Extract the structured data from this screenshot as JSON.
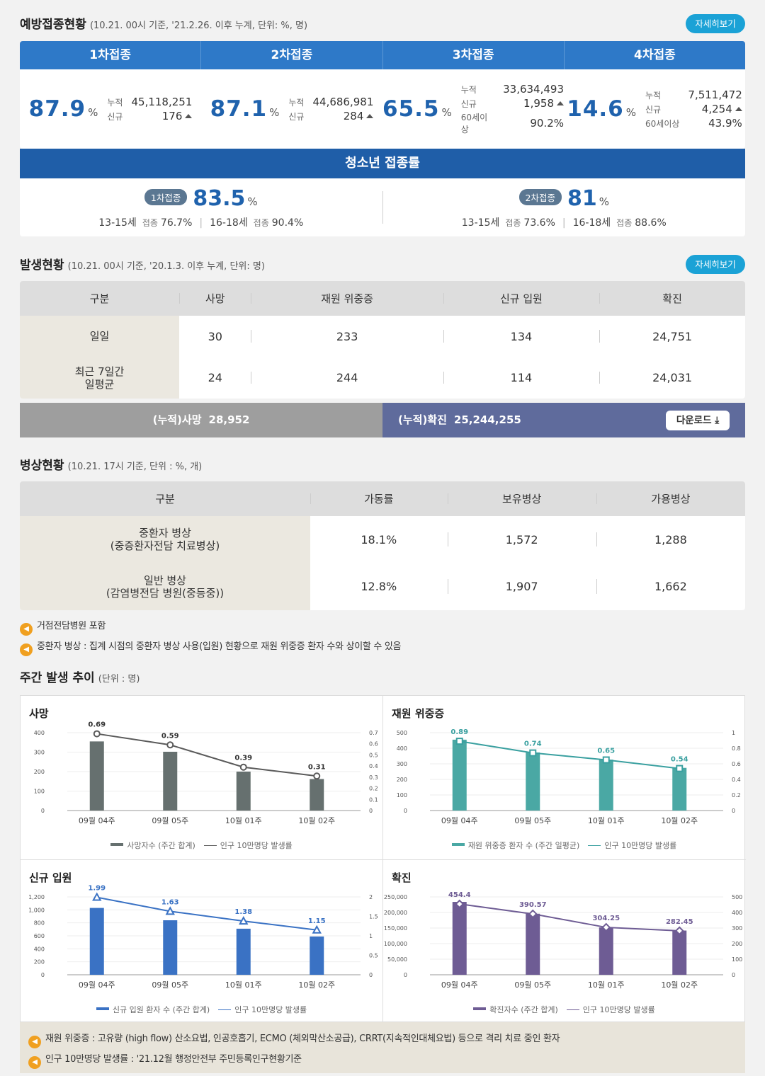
{
  "vaccination": {
    "title": "예방접종현황",
    "subtitle": "(10.21. 00시 기준, '21.2.26. 이후 누계, 단위: %, 명)",
    "more": "자세히보기",
    "doses": [
      {
        "label": "1차접종",
        "rate": "87.9",
        "unit": "%",
        "cum_label": "누적",
        "cum": "45,118,251",
        "new_label": "신규",
        "new": "176",
        "sixty_label": "",
        "sixty": ""
      },
      {
        "label": "2차접종",
        "rate": "87.1",
        "unit": "%",
        "cum_label": "누적",
        "cum": "44,686,981",
        "new_label": "신규",
        "new": "284",
        "sixty_label": "",
        "sixty": ""
      },
      {
        "label": "3차접종",
        "rate": "65.5",
        "unit": "%",
        "cum_label": "누적",
        "cum": "33,634,493",
        "new_label": "신규",
        "new": "1,958",
        "sixty_label": "60세이상",
        "sixty": "90.2%"
      },
      {
        "label": "4차접종",
        "rate": "14.6",
        "unit": "%",
        "cum_label": "누적",
        "cum": "7,511,472",
        "new_label": "신규",
        "new": "4,254",
        "sixty_label": "60세이상",
        "sixty": "43.9%"
      }
    ],
    "teen": {
      "title": "청소년 접종률",
      "cols": [
        {
          "pill": "1차접종",
          "rate": "83.5",
          "unit": "%",
          "g1": "13-15세",
          "g1_lab": "접종",
          "g1_val": "76.7%",
          "g2": "16-18세",
          "g2_lab": "접종",
          "g2_val": "90.4%"
        },
        {
          "pill": "2차접종",
          "rate": "81",
          "unit": "%",
          "g1": "13-15세",
          "g1_lab": "접종",
          "g1_val": "73.6%",
          "g2": "16-18세",
          "g2_lab": "접종",
          "g2_val": "88.6%"
        }
      ]
    }
  },
  "occurrence": {
    "title": "발생현황",
    "subtitle": "(10.21. 00시 기준, '20.1.3. 이후 누계, 단위: 명)",
    "more": "자세히보기",
    "headers": [
      "구분",
      "사망",
      "재원 위중증",
      "신규 입원",
      "확진"
    ],
    "rows": [
      {
        "label": "일일",
        "values": [
          "30",
          "233",
          "134",
          "24,751"
        ]
      },
      {
        "label": "최근 7일간\n일평균",
        "values": [
          "24",
          "244",
          "114",
          "24,031"
        ]
      }
    ],
    "cum_death_label": "(누적)사망",
    "cum_death": "28,952",
    "cum_conf_label": "(누적)확진",
    "cum_conf": "25,244,255",
    "download": "다운로드"
  },
  "beds": {
    "title": "병상현황",
    "subtitle": "(10.21. 17시 기준, 단위 : %, 개)",
    "headers": [
      "구분",
      "가동률",
      "보유병상",
      "가용병상"
    ],
    "rows": [
      {
        "label": "중환자 병상\n(중증환자전담 치료병상)",
        "values": [
          "18.1%",
          "1,572",
          "1,288"
        ]
      },
      {
        "label": "일반 병상\n(감염병전담 병원(중등중))",
        "values": [
          "12.8%",
          "1,907",
          "1,662"
        ]
      }
    ],
    "notes": [
      "거점전담병원 포함",
      "중환자 병상 : 집계 시점의 중환자 병상 사용(입원) 현황으로 재원 위중증 환자 수와 상이할 수 있음"
    ]
  },
  "weekly": {
    "title": "주간 발생 추이",
    "subtitle": "(단위 : 명)",
    "footnotes": [
      "재원 위중증 : 고유량 (high flow) 산소요법, 인공호흡기, ECMO (체외막산소공급), CRRT(지속적인대체요법) 등으로 격리 치료 중인 환자",
      "인구 10만명당 발생률 : '21.12월 행정안전부 주민등록인구현황기준"
    ]
  },
  "chart_data": [
    {
      "type": "bar",
      "title": "사망",
      "categories": [
        "09월 04주",
        "09월 05주",
        "10월 01주",
        "10월 02주"
      ],
      "series": [
        {
          "name": "사망자수 (주간 합계)",
          "values": [
            355,
            302,
            200,
            162
          ],
          "axis": "left"
        },
        {
          "name": "인구 10만명당 발생률",
          "values": [
            0.69,
            0.59,
            0.39,
            0.31
          ],
          "axis": "right",
          "kind": "line"
        }
      ],
      "ylim": [
        0,
        400
      ],
      "yticks": [
        "0",
        "100",
        "200",
        "300",
        "400"
      ],
      "y2lim": [
        0,
        0.7
      ],
      "y2ticks": [
        "0",
        "0.1",
        "0.2",
        "0.3",
        "0.4",
        "0.5",
        "0.6",
        "0.7"
      ],
      "labels": [
        "0.69",
        "0.59",
        "0.39",
        "0.31"
      ],
      "bar_color": "#66706f",
      "line_color": "#5a5a5a",
      "marker": "circle"
    },
    {
      "type": "bar",
      "title": "재원 위중증",
      "categories": [
        "09월 04주",
        "09월 05주",
        "10월 01주",
        "10월 02주"
      ],
      "series": [
        {
          "name": "재원 위중증 환자 수 (주간 일평균)",
          "values": [
            455,
            373,
            327,
            274
          ],
          "axis": "left"
        },
        {
          "name": "인구 10만명당 발생률",
          "values": [
            0.89,
            0.74,
            0.65,
            0.54
          ],
          "axis": "right",
          "kind": "line"
        }
      ],
      "ylim": [
        0,
        500
      ],
      "yticks": [
        "0",
        "100",
        "200",
        "300",
        "400",
        "500"
      ],
      "y2lim": [
        0,
        1
      ],
      "y2ticks": [
        "0",
        "0.2",
        "0.4",
        "0.6",
        "0.8",
        "1"
      ],
      "labels": [
        "0.89",
        "0.74",
        "0.65",
        "0.54"
      ],
      "bar_color": "#4aa8a4",
      "line_color": "#3aa0a0",
      "marker": "square"
    },
    {
      "type": "bar",
      "title": "신규 입원",
      "categories": [
        "09월 04주",
        "09월 05주",
        "10월 01주",
        "10월 02주"
      ],
      "series": [
        {
          "name": "신규 입원 환자 수 (주간 합계)",
          "values": [
            1030,
            840,
            710,
            590
          ],
          "axis": "left"
        },
        {
          "name": "인구 10만명당 발생률",
          "values": [
            1.99,
            1.63,
            1.38,
            1.15
          ],
          "axis": "right",
          "kind": "line"
        }
      ],
      "ylim": [
        0,
        1200
      ],
      "yticks": [
        "0",
        "200",
        "400",
        "600",
        "800",
        "1,000",
        "1,200"
      ],
      "y2lim": [
        0,
        2
      ],
      "y2ticks": [
        "0",
        "0.5",
        "1",
        "1.5",
        "2"
      ],
      "labels": [
        "1.99",
        "1.63",
        "1.38",
        "1.15"
      ],
      "bar_color": "#3a72c4",
      "line_color": "#3a72c4",
      "marker": "triangle"
    },
    {
      "type": "bar",
      "title": "확진",
      "categories": [
        "09월 04주",
        "09월 05주",
        "10월 01주",
        "10월 02주"
      ],
      "series": [
        {
          "name": "확진자수 (주간 합계)",
          "values": [
            234000,
            196000,
            152000,
            142000
          ],
          "axis": "left"
        },
        {
          "name": "인구 10만명당 발생률",
          "values": [
            454.4,
            390.57,
            304.25,
            282.45
          ],
          "axis": "right",
          "kind": "line"
        }
      ],
      "ylim": [
        0,
        250000
      ],
      "yticks": [
        "0",
        "50,000",
        "100,000",
        "150,000",
        "200,000",
        "250,000"
      ],
      "y2lim": [
        0,
        500
      ],
      "y2ticks": [
        "0",
        "100",
        "200",
        "300",
        "400",
        "500"
      ],
      "labels": [
        "454.4",
        "390.57",
        "304.25",
        "282.45"
      ],
      "bar_color": "#6e5c94",
      "line_color": "#6e5c94",
      "marker": "diamond"
    }
  ]
}
